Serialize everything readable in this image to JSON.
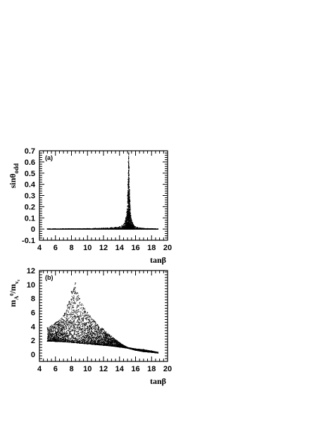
{
  "chart_data": [
    {
      "type": "scatter",
      "panel_label": "(a)",
      "xlabel": "tanβ",
      "ylabel_main": "sinθ",
      "ylabel_sub": "odd",
      "xlim": [
        4,
        20
      ],
      "ylim": [
        -0.1,
        0.7
      ],
      "xticks": [
        4,
        6,
        8,
        10,
        12,
        14,
        16,
        18,
        20
      ],
      "yticks": [
        -0.1,
        0,
        0.1,
        0.2,
        0.3,
        0.4,
        0.5,
        0.6,
        0.7
      ],
      "x_tick_labels": [
        "4",
        "6",
        "8",
        "10",
        "12",
        "14",
        "16",
        "18",
        "20"
      ],
      "y_tick_labels": [
        "-0.1",
        "0",
        "0.1",
        "0.2",
        "0.3",
        "0.4",
        "0.5",
        "0.6",
        "0.7"
      ],
      "series": [
        {
          "x": [
            5.0,
            6.0,
            7.0,
            8.0,
            9.0,
            9.5,
            10.0,
            11.0,
            12.0,
            13.0,
            13.5,
            14.0,
            14.3,
            14.5,
            14.6,
            14.7,
            14.8,
            14.9,
            15.0,
            15.0,
            15.05,
            15.1,
            15.1,
            15.15,
            15.2,
            15.2,
            15.25,
            15.3,
            15.35,
            15.4,
            15.5,
            15.6,
            15.7,
            15.8,
            16.0,
            16.2,
            16.5,
            17.0,
            17.5,
            18.0,
            18.5,
            18.8
          ],
          "y": [
            0.001,
            0.001,
            0.001,
            0.002,
            0.002,
            0.003,
            0.004,
            0.006,
            0.008,
            0.012,
            0.015,
            0.02,
            0.03,
            0.04,
            0.05,
            0.07,
            0.1,
            0.15,
            0.2,
            0.3,
            0.4,
            0.5,
            0.6,
            0.68,
            0.55,
            0.45,
            0.35,
            0.25,
            0.18,
            0.12,
            0.08,
            0.06,
            0.04,
            0.03,
            0.02,
            0.015,
            0.01,
            0.006,
            0.004,
            0.003,
            0.002,
            0.001
          ]
        }
      ]
    },
    {
      "type": "scatter",
      "panel_label": "(b)",
      "xlabel": "tanβ",
      "ylabel_main": "m",
      "ylabel_sub1": "A",
      "ylabel_sup": "0",
      "ylabel_mid": "/m",
      "ylabel_sub2": "ν",
      "ylabel_sub3": "τ",
      "xlim": [
        4,
        20
      ],
      "ylim": [
        -1,
        12
      ],
      "xticks": [
        4,
        6,
        8,
        10,
        12,
        14,
        16,
        18,
        20
      ],
      "yticks": [
        0,
        2,
        4,
        6,
        8,
        10,
        12
      ],
      "x_tick_labels": [
        "4",
        "6",
        "8",
        "10",
        "12",
        "14",
        "16",
        "18",
        "20"
      ],
      "y_tick_labels": [
        "0",
        "2",
        "4",
        "6",
        "8",
        "10",
        "12"
      ],
      "series": [
        {
          "name": "lower edge",
          "x": [
            5.0,
            6.0,
            7.0,
            8.0,
            9.0,
            10.0,
            11.0,
            12.0,
            13.0,
            14.0,
            15.0,
            16.0,
            17.0,
            18.0,
            18.8
          ],
          "y": [
            1.9,
            1.85,
            1.8,
            1.7,
            1.6,
            1.5,
            1.4,
            1.3,
            1.2,
            1.05,
            0.9,
            0.6,
            0.4,
            0.3,
            0.2
          ]
        },
        {
          "name": "upper edge",
          "x": [
            5.0,
            6.0,
            7.0,
            7.5,
            8.0,
            8.5,
            9.0,
            10.0,
            11.0,
            12.0,
            13.0,
            14.0,
            15.0,
            16.0,
            17.0,
            18.0,
            18.8
          ],
          "y": [
            3.8,
            4.5,
            5.5,
            7.0,
            9.0,
            10.2,
            8.0,
            6.0,
            4.6,
            3.6,
            2.6,
            1.7,
            1.0,
            0.8,
            0.7,
            0.5,
            0.3
          ]
        }
      ]
    }
  ]
}
